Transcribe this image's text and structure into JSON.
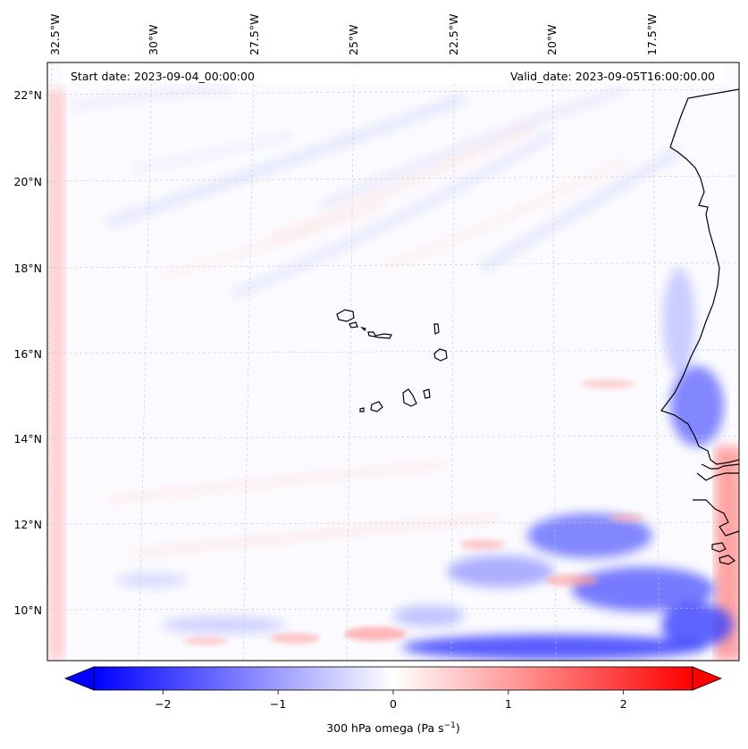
{
  "map": {
    "start_date_text": "Start date: 2023-09-04_00:00:00",
    "valid_date_text": "Valid_date: 2023-09-05T16:00:00.00",
    "lon_labels": [
      "32.5°W",
      "30°W",
      "27.5°W",
      "25°W",
      "22.5°W",
      "20°W",
      "17.5°W"
    ],
    "lat_labels": [
      "22°N",
      "20°N",
      "18°N",
      "16°N",
      "14°N",
      "12°N",
      "10°N"
    ],
    "field_description": "300 hPa omega field over Cabo Verde and West African coast",
    "colors": {
      "negative": "#0000ff",
      "zero": "#ffffff",
      "positive": "#ff0000",
      "coastline": "#000000",
      "gridline": "#c8c8c8"
    }
  },
  "colorbar": {
    "ticks": [
      "−2",
      "−1",
      "0",
      "1",
      "2"
    ],
    "tick_values": [
      -2,
      -1,
      0,
      1,
      2
    ],
    "range": [
      -2.6,
      2.6
    ],
    "label_main": "300 hPa omega (Pa s",
    "label_sup": "−1",
    "label_end": ")",
    "extend": "both"
  }
}
